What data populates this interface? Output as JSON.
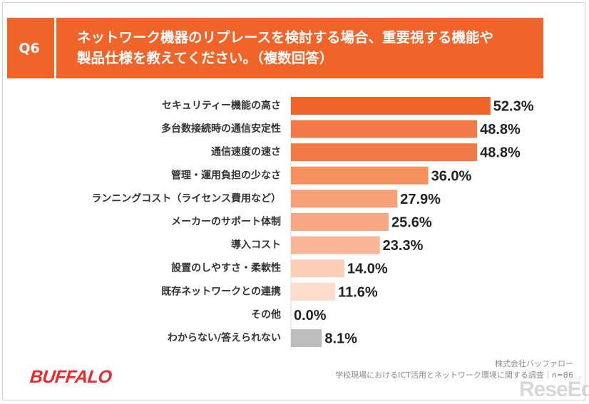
{
  "header": {
    "question_id": "Q6",
    "question_line1": "ネットワーク機器のリプレースを検討する場合、重要視する機能や",
    "question_line2": "製品仕様を教えてください。（複数回答）"
  },
  "chart_data": {
    "type": "bar",
    "orientation": "horizontal",
    "title": "ネットワーク機器のリプレースを検討する場合、重要視する機能や製品仕様を教えてください。（複数回答）",
    "categories": [
      "セキュリティー機能の高さ",
      "多台数接続時の通信安定性",
      "通信速度の速さ",
      "管理・運用負担の少なさ",
      "ランニングコスト（ライセンス費用など）",
      "メーカーのサポート体制",
      "導入コスト",
      "設置のしやすさ・柔軟性",
      "既存ネットワークとの連携",
      "その他",
      "わからない/答えられない"
    ],
    "values": [
      52.3,
      48.8,
      48.8,
      36.0,
      27.9,
      25.6,
      23.3,
      14.0,
      11.6,
      0.0,
      8.1
    ],
    "value_labels": [
      "52.3%",
      "48.8%",
      "48.8%",
      "36.0%",
      "27.9%",
      "25.6%",
      "23.3%",
      "14.0%",
      "11.6%",
      "0.0%",
      "8.1%"
    ],
    "bar_colors": [
      "#f0642a",
      "#f27a49",
      "#f27a49",
      "#f5915f",
      "#f6a077",
      "#f7a882",
      "#f8b696",
      "#fbcfb8",
      "#fcdccb",
      "#fde6da",
      "#bdbdbd"
    ],
    "xlim": [
      0,
      100
    ],
    "xlabel": "",
    "ylabel": "",
    "grid": false,
    "legend": "none"
  },
  "footer": {
    "company": "株式会社バッファロー",
    "survey": "学校現場におけるICT活用とネットワーク環境に関する調査｜n=86",
    "brand": "BUFFALO",
    "watermark": "ReseEd",
    "watermark_sub": "リシード"
  }
}
